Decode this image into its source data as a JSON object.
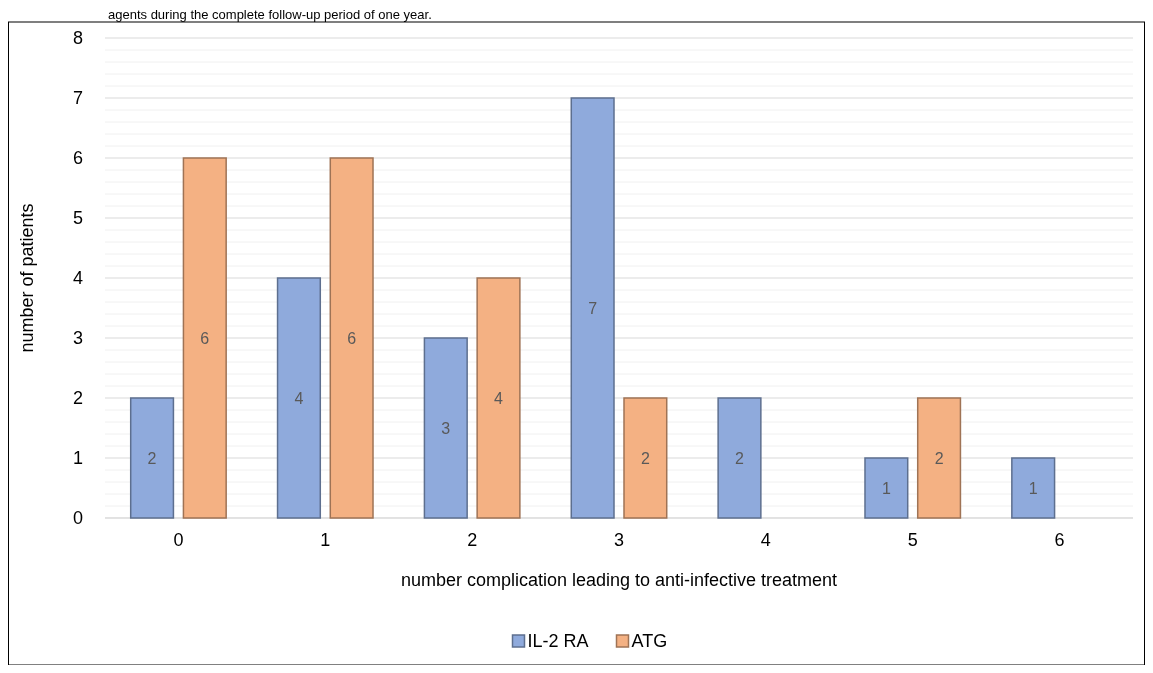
{
  "chart_data": {
    "type": "bar",
    "annotations": [
      "agents during the complete follow-up period of one year."
    ],
    "categories": [
      "0",
      "1",
      "2",
      "3",
      "4",
      "5",
      "6"
    ],
    "series": [
      {
        "name": "IL-2 RA",
        "color": "#8faadc",
        "values": [
          2,
          4,
          3,
          7,
          2,
          1,
          1
        ]
      },
      {
        "name": "ATG",
        "color": "#f4b183",
        "values": [
          6,
          6,
          4,
          2,
          null,
          2,
          null
        ]
      }
    ],
    "xlabel": "number complication leading to anti-infective treatment",
    "ylabel": "number of patients",
    "ylim": [
      0,
      8
    ],
    "yticks": [
      0,
      {
        "value": 0.2,
        "label": null
      },
      {
        "value": 0.4,
        "label": null
      },
      {
        "value": 0.6,
        "label": null
      },
      {
        "value": 0.8,
        "label": null
      },
      1,
      {
        "value": 1.2,
        "label": null
      },
      {
        "value": 1.4,
        "label": null
      },
      {
        "value": 1.6,
        "label": null
      },
      {
        "value": 1.8,
        "label": null
      },
      2,
      {
        "value": 2.2,
        "label": null
      },
      {
        "value": 2.4,
        "label": null
      },
      {
        "value": 2.6,
        "label": null
      },
      {
        "value": 2.8,
        "label": null
      },
      3,
      {
        "value": 3.2,
        "label": null
      },
      {
        "value": 3.4,
        "label": null
      },
      {
        "value": 3.6,
        "label": null
      },
      {
        "value": 3.8,
        "label": null
      },
      4,
      {
        "value": 4.2,
        "label": null
      },
      {
        "value": 4.4,
        "label": null
      },
      {
        "value": 4.6,
        "label": null
      },
      {
        "value": 4.8,
        "label": null
      },
      5,
      {
        "value": 5.2,
        "label": null
      },
      {
        "value": 5.4,
        "label": null
      },
      {
        "value": 5.6,
        "label": null
      },
      {
        "value": 5.8,
        "label": null
      },
      6,
      {
        "value": 6.2,
        "label": null
      },
      {
        "value": 6.4,
        "label": null
      },
      {
        "value": 6.6,
        "label": null
      },
      {
        "value": 6.8,
        "label": null
      },
      7,
      {
        "value": 7.2,
        "label": null
      },
      {
        "value": 7.4,
        "label": null
      },
      {
        "value": 7.6,
        "label": null
      },
      {
        "value": 7.8,
        "label": null
      },
      8
    ],
    "grid": "y",
    "legend": "bottom",
    "data_labels": true
  }
}
